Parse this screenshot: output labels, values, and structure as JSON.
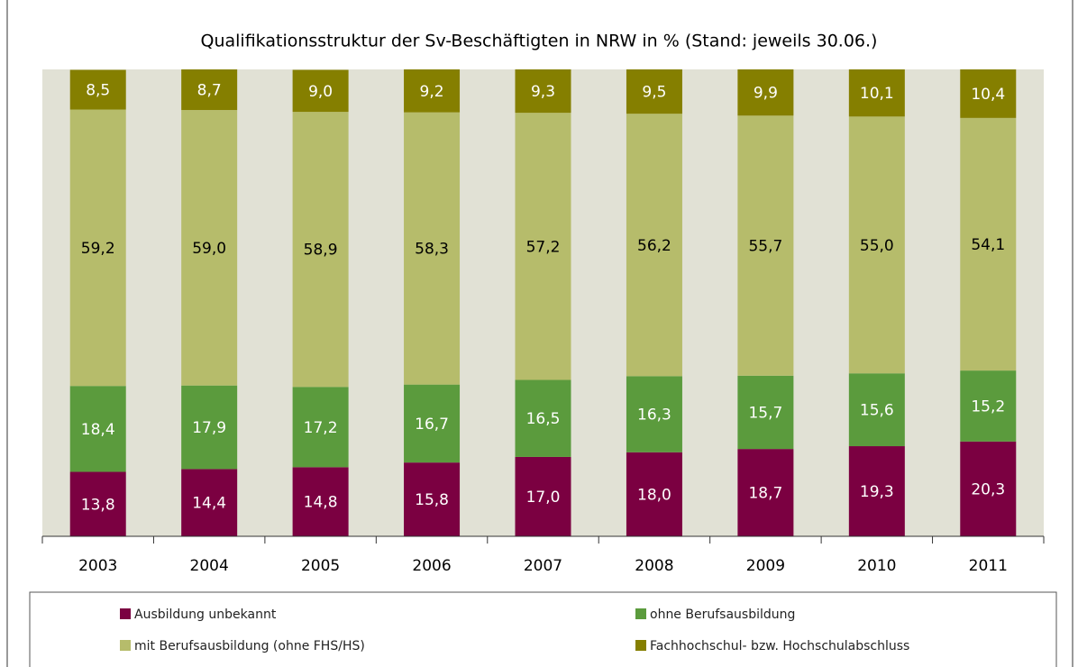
{
  "chart_data": {
    "type": "stacked_bar",
    "title": "Qualifikationsstruktur der Sv-Beschäftigten in NRW in % (Stand: jeweils 30.06.)",
    "categories": [
      "2003",
      "2004",
      "2005",
      "2006",
      "2007",
      "2008",
      "2009",
      "2010",
      "2011"
    ],
    "ylim": [
      0,
      100
    ],
    "series": [
      {
        "name": "Ausbildung unbekannt",
        "color": "#7b0041",
        "values": [
          13.8,
          14.4,
          14.8,
          15.8,
          17.0,
          18.0,
          18.7,
          19.3,
          20.3
        ],
        "value_labels": [
          "13,8",
          "14,4",
          "14,8",
          "15,8",
          "17,0",
          "18,0",
          "18,7",
          "19,3",
          "20,3"
        ]
      },
      {
        "name": "ohne Berufsausbildung",
        "color": "#5b9b3d",
        "values": [
          18.4,
          17.9,
          17.2,
          16.7,
          16.5,
          16.3,
          15.7,
          15.6,
          15.2
        ],
        "value_labels": [
          "18,4",
          "17,9",
          "17,2",
          "16,7",
          "16,5",
          "16,3",
          "15,7",
          "15,6",
          "15,2"
        ]
      },
      {
        "name": "mit Berufsausbildung (ohne FHS/HS)",
        "color": "#b6bc6b",
        "values": [
          59.2,
          59.0,
          58.9,
          58.3,
          57.2,
          56.2,
          55.7,
          55.0,
          54.1
        ],
        "value_labels": [
          "59,2",
          "59,0",
          "58,9",
          "58,3",
          "57,2",
          "56,2",
          "55,7",
          "55,0",
          "54,1"
        ]
      },
      {
        "name": "Fachhochschul- bzw. Hochschulabschluss",
        "color": "#857f00",
        "values": [
          8.5,
          8.7,
          9.0,
          9.2,
          9.3,
          9.5,
          9.9,
          10.1,
          10.4
        ],
        "value_labels": [
          "8,5",
          "8,7",
          "9,0",
          "9,2",
          "9,3",
          "9,5",
          "9,9",
          "10,1",
          "10,4"
        ]
      }
    ]
  }
}
